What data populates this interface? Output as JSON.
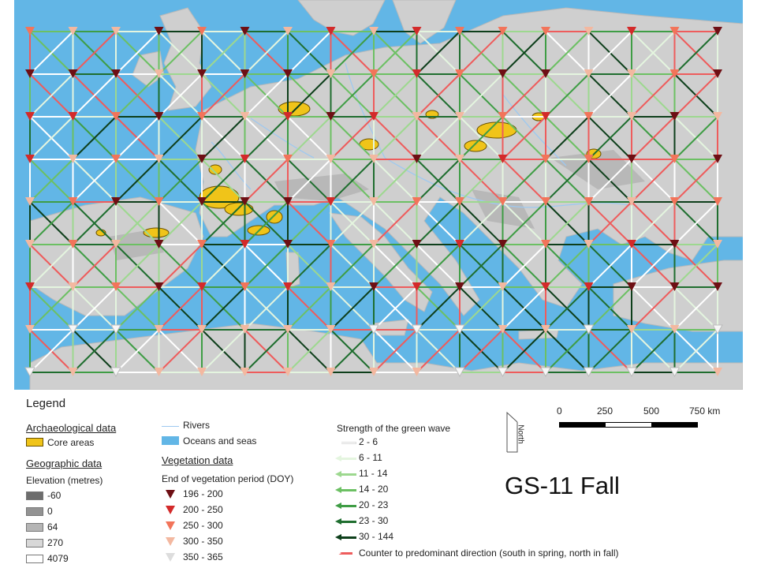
{
  "colors": {
    "ocean": "#62b6e6",
    "land": "#cfcfcf",
    "core_area": "#f0c419",
    "river": "#9ec9f0",
    "veg": [
      "#6e0f14",
      "#d32a2a",
      "#f2745a",
      "#f3b8a0",
      "#f7f7f7"
    ],
    "wave": [
      "#ffffff",
      "#e4f5df",
      "#9dd88f",
      "#6cc063",
      "#3f9d45",
      "#1f6e2f",
      "#0e3f1b"
    ],
    "counter": "#ee5c5c"
  },
  "map": {
    "title": "GS-11 Fall",
    "north_label": "North",
    "scale": {
      "ticks": [
        "0",
        "250",
        "500",
        "750 km"
      ]
    }
  },
  "legend": {
    "title": "Legend",
    "archaeological": {
      "header": "Archaeological data",
      "items": [
        {
          "label": "Core areas",
          "color": "#f0c419"
        }
      ]
    },
    "geographic": {
      "header": "Geographic data",
      "elevation_title": "Elevation (metres)",
      "elevation_items": [
        {
          "label": "-60",
          "color": "#6d6d6d"
        },
        {
          "label": "0",
          "color": "#939393"
        },
        {
          "label": "64",
          "color": "#b5b5b5"
        },
        {
          "label": "270",
          "color": "#d8d8d8"
        },
        {
          "label": "4079",
          "color": "#ffffff"
        }
      ]
    },
    "rivers": "Rivers",
    "oceans": "Oceans and seas",
    "vegetation": {
      "header": "Vegetation data",
      "subtitle": "End of vegetation period (DOY)",
      "items": [
        {
          "label": "196 - 200",
          "color": "#6e0f14"
        },
        {
          "label": "200 - 250",
          "color": "#d32a2a"
        },
        {
          "label": "250 - 300",
          "color": "#f2745a"
        },
        {
          "label": "300 - 350",
          "color": "#f3b8a0"
        },
        {
          "label": "350 - 365",
          "color": "#f7f7f7"
        }
      ]
    },
    "wave": {
      "title": "Strength of the green wave",
      "items": [
        {
          "label": "2 - 6",
          "color": "#ffffff"
        },
        {
          "label": "6 - 11",
          "color": "#e4f5df"
        },
        {
          "label": "11 - 14",
          "color": "#9dd88f"
        },
        {
          "label": "14 - 20",
          "color": "#6cc063"
        },
        {
          "label": "20 - 23",
          "color": "#3f9d45"
        },
        {
          "label": "23 - 30",
          "color": "#1f6e2f"
        },
        {
          "label": "30 - 144",
          "color": "#0e3f1b"
        }
      ],
      "counter_label": "Counter to predominant direction (south in spring, north in fall)"
    }
  }
}
